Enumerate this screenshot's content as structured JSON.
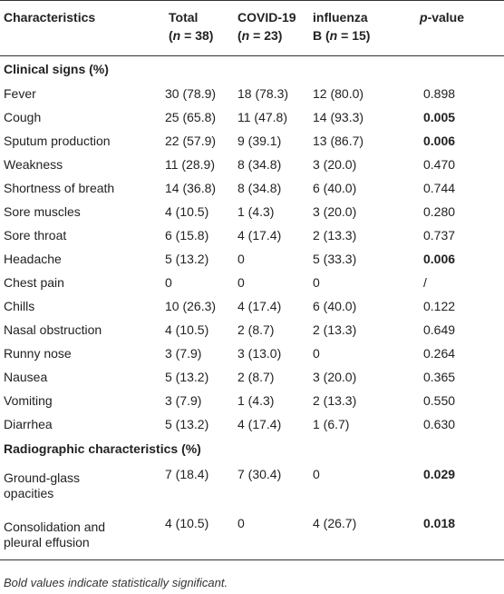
{
  "table": {
    "header": [
      [
        "Characteristics"
      ],
      [
        "Total",
        "(n = 38)"
      ],
      [
        "COVID-19",
        "(n = 23)"
      ],
      [
        "influenza",
        "B (n = 15)"
      ],
      [
        "p-value"
      ]
    ],
    "sections": [
      {
        "title": "Clinical signs (%)",
        "rows": [
          {
            "cells": [
              "Fever",
              "30 (78.9)",
              "18 (78.3)",
              "12 (80.0)",
              "0.898"
            ]
          },
          {
            "cells": [
              "Cough",
              "25 (65.8)",
              "11 (47.8)",
              "14 (93.3)",
              "0.005"
            ],
            "bold_p": true
          },
          {
            "cells": [
              "Sputum production",
              "22 (57.9)",
              "9 (39.1)",
              "13 (86.7)",
              "0.006"
            ],
            "bold_p": true
          },
          {
            "cells": [
              "Weakness",
              "11 (28.9)",
              "8 (34.8)",
              "3 (20.0)",
              "0.470"
            ]
          },
          {
            "cells": [
              "Shortness of breath",
              "14 (36.8)",
              "8 (34.8)",
              "6 (40.0)",
              "0.744"
            ]
          },
          {
            "cells": [
              "Sore muscles",
              "4 (10.5)",
              "1 (4.3)",
              "3 (20.0)",
              "0.280"
            ]
          },
          {
            "cells": [
              "Sore throat",
              "6 (15.8)",
              "4 (17.4)",
              "2 (13.3)",
              "0.737"
            ]
          },
          {
            "cells": [
              "Headache",
              "5 (13.2)",
              "0",
              "5 (33.3)",
              "0.006"
            ],
            "bold_p": true
          },
          {
            "cells": [
              "Chest pain",
              "0",
              "0",
              "0",
              "/"
            ]
          },
          {
            "cells": [
              "Chills",
              "10 (26.3)",
              "4 (17.4)",
              "6 (40.0)",
              "0.122"
            ]
          },
          {
            "cells": [
              "Nasal obstruction",
              "4 (10.5)",
              "2 (8.7)",
              "2 (13.3)",
              "0.649"
            ]
          },
          {
            "cells": [
              "Runny nose",
              "3 (7.9)",
              "3 (13.0)",
              "0",
              "0.264"
            ]
          },
          {
            "cells": [
              "Nausea",
              "5 (13.2)",
              "2 (8.7)",
              "3 (20.0)",
              "0.365"
            ]
          },
          {
            "cells": [
              "Vomiting",
              "3 (7.9)",
              "1 (4.3)",
              "2 (13.3)",
              "0.550"
            ]
          },
          {
            "cells": [
              "Diarrhea",
              "5 (13.2)",
              "4 (17.4)",
              "1 (6.7)",
              "0.630"
            ]
          }
        ]
      },
      {
        "title": "Radiographic characteristics (%)",
        "rows": [
          {
            "cells": [
              "Ground-glass opacities",
              "7 (18.4)",
              "7 (30.4)",
              "0",
              "0.029"
            ],
            "bold_p": true
          },
          {
            "cells": [
              "Consolidation and pleural effusion",
              "4 (10.5)",
              "0",
              "4 (26.7)",
              "0.018"
            ],
            "bold_p": true
          }
        ]
      }
    ],
    "footnote": "Bold values indicate statistically significant."
  }
}
